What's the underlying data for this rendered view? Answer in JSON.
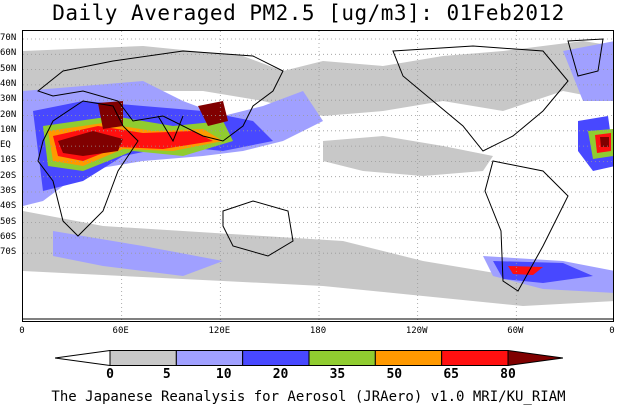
{
  "title": "Daily Averaged PM2.5 [ug/m3]: 01Feb2012",
  "footer": "The Japanese Reanalysis for Aerosol (JRAero) v1.0 MRI/KU_RIAM",
  "map": {
    "latitude_labels": [
      "70N",
      "60N",
      "50N",
      "40N",
      "30N",
      "20N",
      "10N",
      "EQ",
      "10S",
      "20S",
      "30S",
      "40S",
      "50S",
      "60S",
      "70S"
    ],
    "longitude_labels": [
      "0",
      "60E",
      "120E",
      "180",
      "120W",
      "60W",
      "0"
    ],
    "projection": "cylindrical equidistant",
    "gridlines": "dotted"
  },
  "colorbar": {
    "levels": [
      "0",
      "5",
      "10",
      "20",
      "35",
      "50",
      "65",
      "80"
    ],
    "colors": [
      "#ffffff",
      "#c8c8c8",
      "#a0a0ff",
      "#4848ff",
      "#90cc30",
      "#ff9900",
      "#ff1010",
      "#800000"
    ],
    "units": "ug/m3"
  },
  "colors": {
    "coastline": "#000000",
    "background": "#ffffff"
  }
}
